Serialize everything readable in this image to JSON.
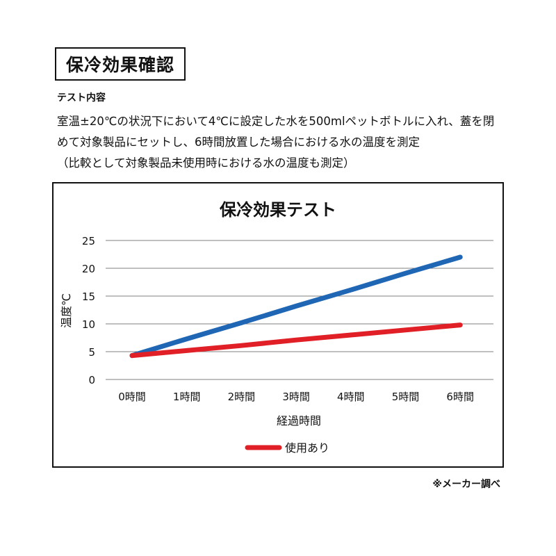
{
  "header": {
    "title": "保冷効果確認",
    "test_heading": "テスト内容",
    "description_lines": [
      "室温±20℃の状況下において4℃に設定した水を500mlペットボトルに入れ、蓋を閉",
      "めて対象製品にセットし、6時間放置した場合における水の温度を測定",
      "（比較として対象製品未使用時における水の温度も測定）"
    ]
  },
  "chart_data": {
    "type": "line",
    "title": "保冷効果テスト",
    "xlabel": "経過時間",
    "ylabel": "温度℃",
    "categories": [
      "0時間",
      "1時間",
      "2時間",
      "3時間",
      "4時間",
      "5時間",
      "6時間"
    ],
    "ylim": [
      0,
      25
    ],
    "yticks": [
      0,
      5,
      10,
      15,
      20,
      25
    ],
    "grid": true,
    "legend_position": "bottom",
    "series": [
      {
        "name": "",
        "color": "#1f66b4",
        "values": [
          4.3,
          7.3,
          10.2,
          13.2,
          16.1,
          19.1,
          22.0
        ]
      },
      {
        "name": "使用あり",
        "color": "#e01f26",
        "values": [
          4.3,
          5.2,
          6.1,
          7.1,
          8.0,
          8.9,
          9.8
        ]
      }
    ]
  },
  "footer": {
    "note": "※メーカー調べ"
  }
}
